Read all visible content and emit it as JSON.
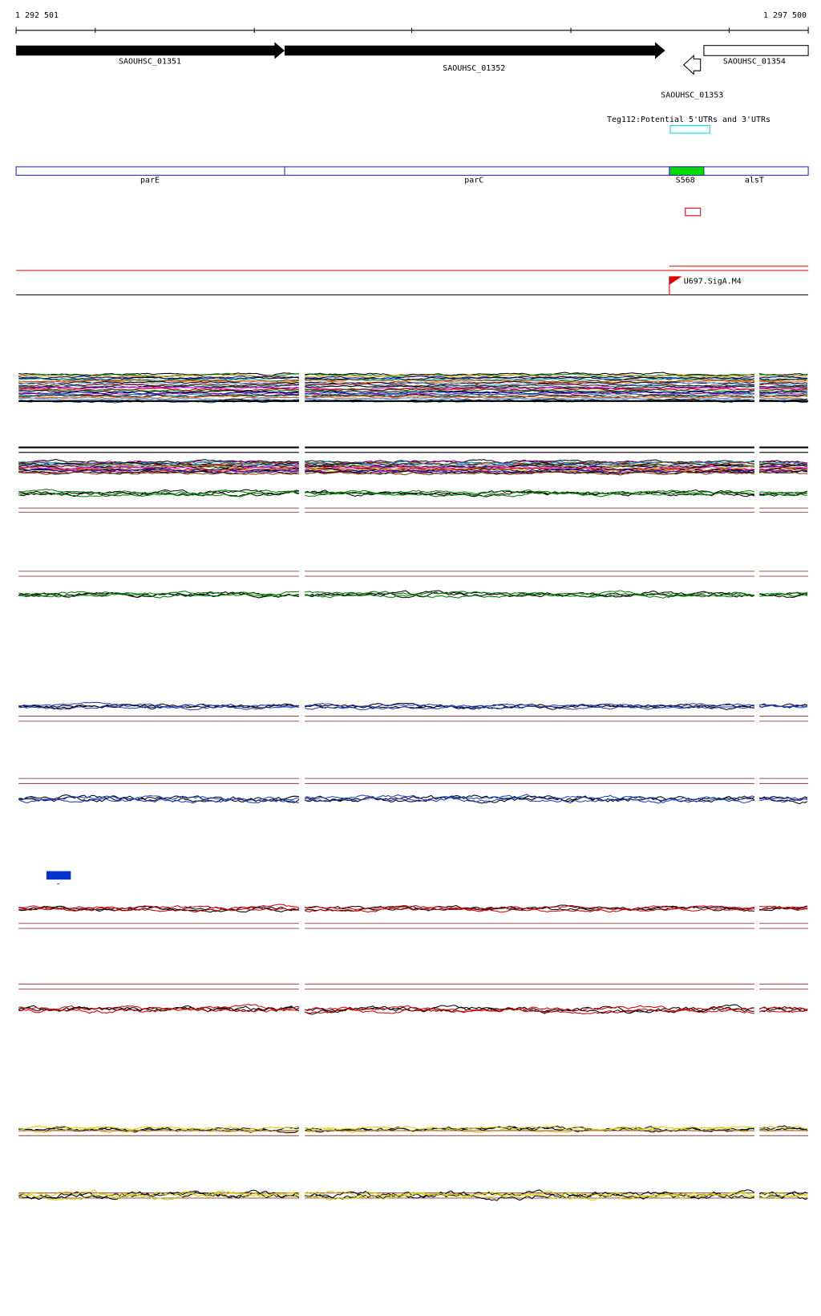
{
  "ruler": {
    "start": "1 292 501",
    "end": "1 297 500"
  },
  "genes": [
    {
      "label": "SAOUHSC_01351"
    },
    {
      "label": "SAOUHSC_01352"
    },
    {
      "label": "SAOUHSC_01353"
    },
    {
      "label": "SAOUHSC_01354"
    }
  ],
  "utr": {
    "label": "Teg112:Potential 5'UTRs and 3'UTRs"
  },
  "features": [
    {
      "label": "parE"
    },
    {
      "label": "parC"
    },
    {
      "label": "S568"
    },
    {
      "label": "alsT"
    }
  ],
  "promoter": {
    "label": "U697.SigA.M4"
  },
  "legend": {
    "label": "-"
  }
}
